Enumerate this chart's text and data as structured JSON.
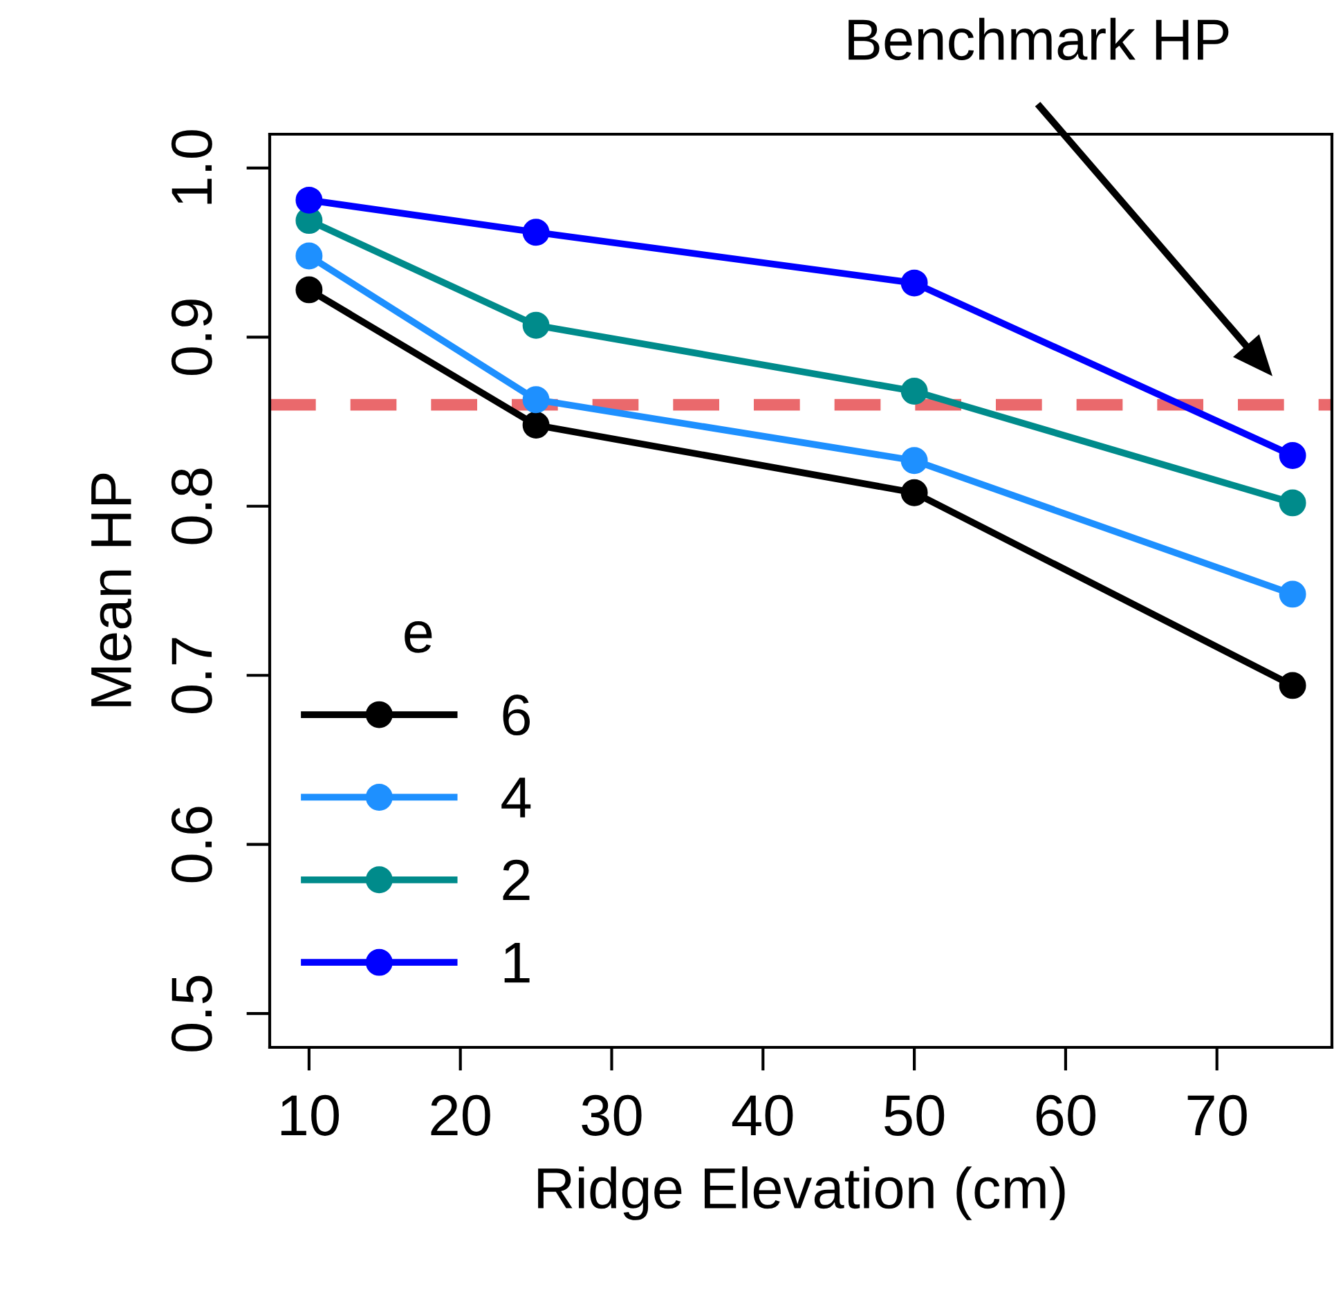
{
  "chart_data": {
    "type": "line",
    "xlabel": "Ridge Elevation (cm)",
    "ylabel": "Mean HP",
    "x": [
      10,
      25,
      50,
      75
    ],
    "series": [
      {
        "name": "6",
        "color": "#000000",
        "values": [
          0.928,
          0.848,
          0.808,
          0.694
        ]
      },
      {
        "name": "4",
        "color": "#1e90ff",
        "values": [
          0.948,
          0.863,
          0.827,
          0.748
        ]
      },
      {
        "name": "2",
        "color": "#008b8b",
        "values": [
          0.969,
          0.907,
          0.868,
          0.802
        ]
      },
      {
        "name": "1",
        "color": "#0000ff",
        "values": [
          0.981,
          0.962,
          0.932,
          0.83
        ]
      }
    ],
    "legend_title": "e",
    "legend": "bottom left",
    "marker": "circle",
    "line_style": "solid",
    "grid": false,
    "xlim": [
      7.4,
      77.6
    ],
    "xticks": [
      10,
      20,
      30,
      40,
      50,
      60,
      70
    ],
    "ylim": [
      0.48,
      1.02
    ],
    "yticks": [
      0.5,
      0.6,
      0.7,
      0.8,
      0.9,
      {
        "value": 1.0,
        "label": "1.0"
      }
    ],
    "ref_lines": [
      {
        "axis": "y",
        "value": 0.86,
        "color": "#e8595c",
        "line_style": "dashed"
      }
    ],
    "annotations": [
      "Benchmark HP"
    ]
  }
}
